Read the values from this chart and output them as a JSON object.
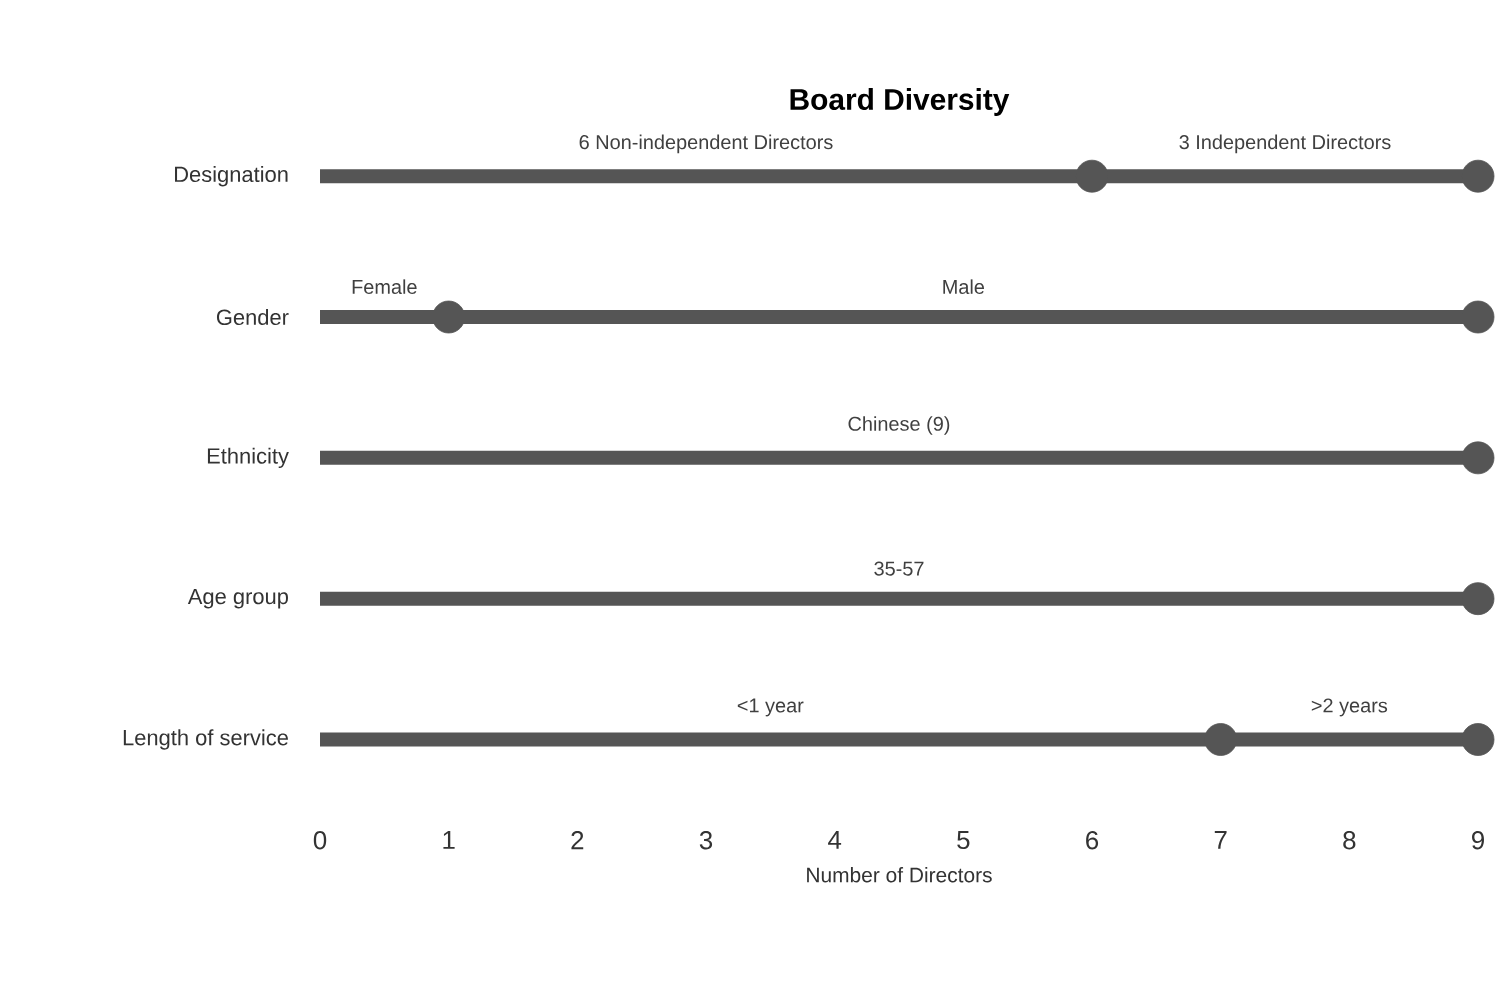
{
  "chart_data": {
    "type": "lollipop",
    "orientation": "horizontal",
    "title": "Board Diversity",
    "xlabel": "Number of Directors",
    "categories": [
      "Designation",
      "Gender",
      "Ethnicity",
      "Age group",
      "Length of service"
    ],
    "series": [
      {
        "color": "#555555",
        "values": [
          9,
          9,
          9,
          9,
          9
        ]
      },
      {
        "type": "scatter",
        "color": "#555555",
        "values": [
          6,
          1,
          null,
          null,
          7
        ]
      }
    ],
    "marker": "circle",
    "xlim": [
      0,
      9
    ],
    "xticks": [
      0,
      1,
      2,
      3,
      4,
      5,
      6,
      7,
      8,
      9
    ],
    "annotations": [
      "6 Non-independent Directors",
      "3 Independent Directors",
      "Female",
      "Male",
      "Chinese (9)",
      "35-57",
      "<1 year",
      ">2 years"
    ]
  }
}
